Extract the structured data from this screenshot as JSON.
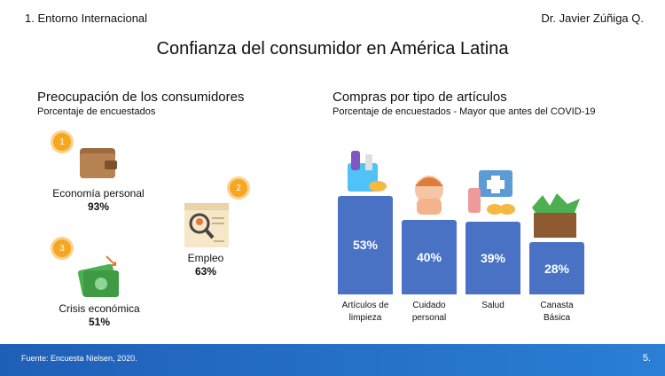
{
  "header": {
    "section": "1. Entorno Internacional",
    "author": "Dr. Javier Zúñiga Q."
  },
  "title": "Confianza del consumidor en América Latina",
  "concerns": {
    "title": "Preocupación de los consumidores",
    "subtitle": "Porcentaje de encuestados",
    "items": [
      {
        "rank": "1",
        "label": "Economía personal",
        "percent": "93%"
      },
      {
        "rank": "2",
        "label": "Empleo",
        "percent": "63%"
      },
      {
        "rank": "3",
        "label": "Crisis económica",
        "percent": "51%"
      }
    ]
  },
  "chart_data": {
    "type": "bar",
    "title": "Compras por tipo de artículos",
    "subtitle": "Porcentaje de encuestados - Mayor que antes del COVID-19",
    "categories": [
      "Artículos de limpieza",
      "Cuidado personal",
      "Salud",
      "Canasta Básica"
    ],
    "values": [
      53,
      40,
      39,
      28
    ],
    "value_labels": [
      "53%",
      "40%",
      "39%",
      "28%"
    ],
    "color": "#4a72c4"
  },
  "footer": {
    "source": "Fuente: Encuesta Nielsen, 2020.",
    "page": "5."
  }
}
